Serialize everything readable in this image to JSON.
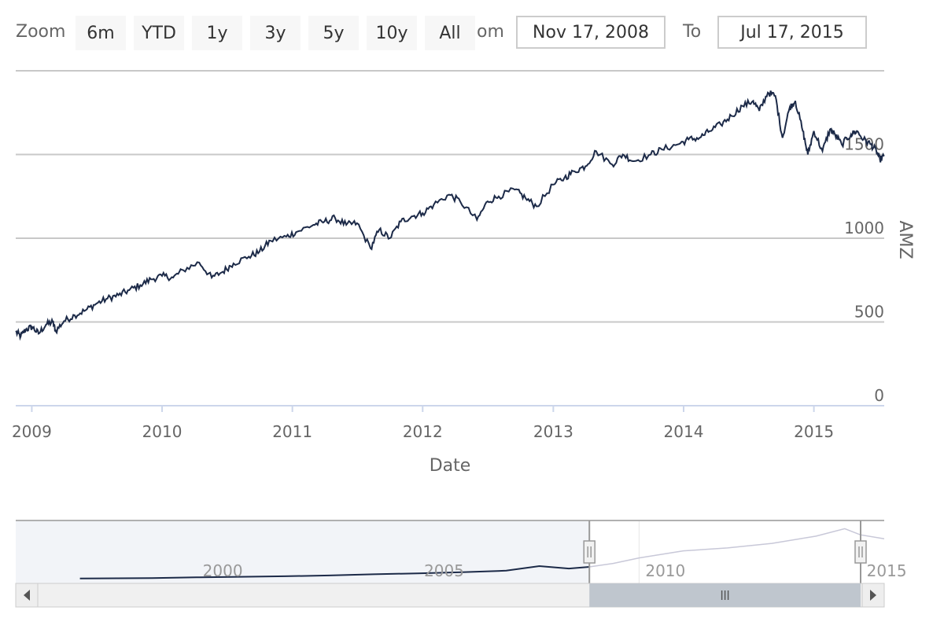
{
  "toolbar": {
    "zoom_label": "Zoom",
    "zoom_buttons": [
      "6m",
      "YTD",
      "1y",
      "3y",
      "5y",
      "10y",
      "All"
    ],
    "from_label": "om",
    "from_value": "Nov 17, 2008",
    "to_label": "To",
    "to_value": "Jul 17, 2015"
  },
  "colors": {
    "series": "#1c2a48",
    "navigator_series_unselected": "#c8c8d8",
    "grid": "#c8c8c8",
    "navigator_mask": "#f2f4f8",
    "scrollbar_thumb": "#bfc6ce",
    "scrollbar_track": "#f0f0f0"
  },
  "chart_data": {
    "type": "line",
    "title": "",
    "xlabel": "Date",
    "ylabel": "AMZ",
    "ylim": [
      0,
      2000
    ],
    "yticks": [
      0,
      500,
      1000,
      1500
    ],
    "xlim": [
      "2008-11-17",
      "2015-07-17"
    ],
    "xticks": [
      "2009",
      "2010",
      "2011",
      "2012",
      "2013",
      "2014",
      "2015"
    ],
    "grid": true,
    "series": [
      {
        "values": [
          [
            "2008-11-17",
            440
          ],
          [
            "2008-12-01",
            415
          ],
          [
            "2008-12-15",
            455
          ],
          [
            "2009-01-02",
            470
          ],
          [
            "2009-01-20",
            430
          ],
          [
            "2009-02-10",
            485
          ],
          [
            "2009-03-01",
            500
          ],
          [
            "2009-03-09",
            445
          ],
          [
            "2009-04-01",
            505
          ],
          [
            "2009-05-01",
            540
          ],
          [
            "2009-06-01",
            570
          ],
          [
            "2009-07-01",
            610
          ],
          [
            "2009-08-01",
            640
          ],
          [
            "2009-09-01",
            660
          ],
          [
            "2009-10-01",
            690
          ],
          [
            "2009-11-01",
            720
          ],
          [
            "2009-12-01",
            755
          ],
          [
            "2010-01-01",
            775
          ],
          [
            "2010-02-01",
            765
          ],
          [
            "2010-03-01",
            810
          ],
          [
            "2010-04-15",
            855
          ],
          [
            "2010-05-20",
            765
          ],
          [
            "2010-06-20",
            800
          ],
          [
            "2010-07-20",
            850
          ],
          [
            "2010-09-01",
            890
          ],
          [
            "2010-10-01",
            920
          ],
          [
            "2010-11-01",
            985
          ],
          [
            "2010-12-15",
            1010
          ],
          [
            "2011-01-15",
            1040
          ],
          [
            "2011-03-01",
            1080
          ],
          [
            "2011-04-01",
            1100
          ],
          [
            "2011-05-01",
            1120
          ],
          [
            "2011-06-01",
            1080
          ],
          [
            "2011-07-01",
            1090
          ],
          [
            "2011-08-08",
            940
          ],
          [
            "2011-09-01",
            1050
          ],
          [
            "2011-10-01",
            1000
          ],
          [
            "2011-11-01",
            1100
          ],
          [
            "2011-12-01",
            1130
          ],
          [
            "2012-01-01",
            1150
          ],
          [
            "2012-02-01",
            1200
          ],
          [
            "2012-03-15",
            1260
          ],
          [
            "2012-04-15",
            1220
          ],
          [
            "2012-06-01",
            1110
          ],
          [
            "2012-07-01",
            1220
          ],
          [
            "2012-08-01",
            1250
          ],
          [
            "2012-09-15",
            1290
          ],
          [
            "2012-10-15",
            1240
          ],
          [
            "2012-11-15",
            1190
          ],
          [
            "2013-01-01",
            1320
          ],
          [
            "2013-02-01",
            1360
          ],
          [
            "2013-03-01",
            1400
          ],
          [
            "2013-04-01",
            1430
          ],
          [
            "2013-05-01",
            1520
          ],
          [
            "2013-06-15",
            1440
          ],
          [
            "2013-07-15",
            1500
          ],
          [
            "2013-08-15",
            1460
          ],
          [
            "2013-10-01",
            1500
          ],
          [
            "2013-11-01",
            1530
          ],
          [
            "2013-12-15",
            1560
          ],
          [
            "2014-01-15",
            1590
          ],
          [
            "2014-02-15",
            1600
          ],
          [
            "2014-03-15",
            1640
          ],
          [
            "2014-04-15",
            1680
          ],
          [
            "2014-05-15",
            1730
          ],
          [
            "2014-06-15",
            1790
          ],
          [
            "2014-07-15",
            1820
          ],
          [
            "2014-08-01",
            1760
          ],
          [
            "2014-08-25",
            1870
          ],
          [
            "2014-09-15",
            1850
          ],
          [
            "2014-10-05",
            1600
          ],
          [
            "2014-10-25",
            1780
          ],
          [
            "2014-11-10",
            1820
          ],
          [
            "2014-12-01",
            1640
          ],
          [
            "2014-12-15",
            1500
          ],
          [
            "2015-01-01",
            1640
          ],
          [
            "2015-01-25",
            1520
          ],
          [
            "2015-02-15",
            1650
          ],
          [
            "2015-03-01",
            1620
          ],
          [
            "2015-03-20",
            1560
          ],
          [
            "2015-04-15",
            1620
          ],
          [
            "2015-05-01",
            1640
          ],
          [
            "2015-05-20",
            1590
          ],
          [
            "2015-06-10",
            1560
          ],
          [
            "2015-06-25",
            1520
          ],
          [
            "2015-07-05",
            1470
          ],
          [
            "2015-07-17",
            1490
          ]
        ]
      }
    ],
    "navigator": {
      "xlim": [
        "1996-06-01",
        "2015-07-17"
      ],
      "xticks": [
        "2000",
        "2005",
        "2010",
        "2015"
      ],
      "selected_range": [
        "2008-11-17",
        "2015-07-17"
      ],
      "values": [
        [
          "1997-05-15",
          5
        ],
        [
          "1999-01-01",
          20
        ],
        [
          "2000-01-01",
          50
        ],
        [
          "2001-01-01",
          70
        ],
        [
          "2002-01-01",
          90
        ],
        [
          "2003-01-01",
          120
        ],
        [
          "2004-01-01",
          165
        ],
        [
          "2005-01-01",
          200
        ],
        [
          "2006-01-01",
          240
        ],
        [
          "2007-01-01",
          300
        ],
        [
          "2007-10-01",
          470
        ],
        [
          "2008-06-01",
          380
        ],
        [
          "2008-11-17",
          440
        ],
        [
          "2009-06-01",
          570
        ],
        [
          "2010-01-01",
          775
        ],
        [
          "2011-01-01",
          1040
        ],
        [
          "2012-01-01",
          1150
        ],
        [
          "2013-01-01",
          1320
        ],
        [
          "2014-01-01",
          1590
        ],
        [
          "2014-08-25",
          1870
        ],
        [
          "2015-01-01",
          1640
        ],
        [
          "2015-07-17",
          1490
        ]
      ]
    }
  }
}
